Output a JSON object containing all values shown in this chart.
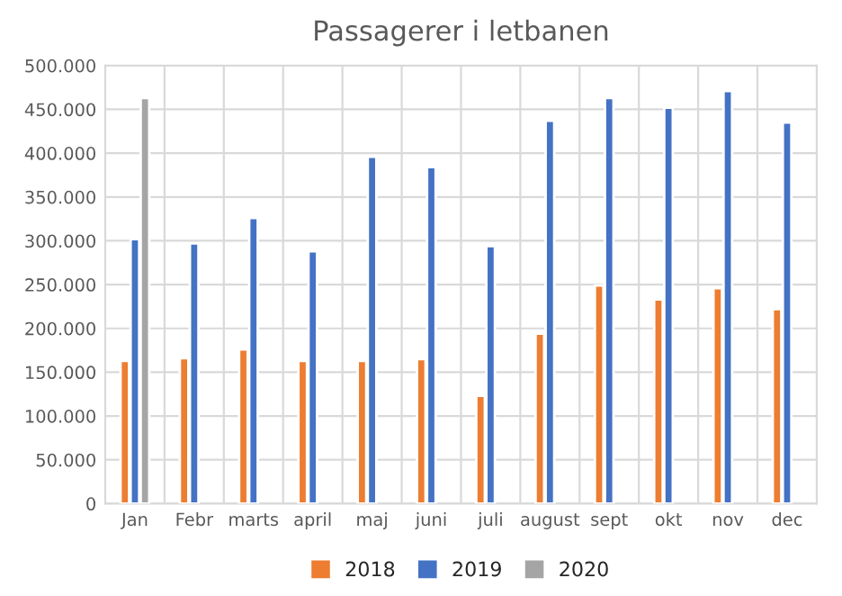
{
  "chart_data": {
    "type": "bar",
    "title": "Passagerer i letbanen",
    "categories": [
      "Jan",
      "Febr",
      "marts",
      "april",
      "maj",
      "juni",
      "juli",
      "august",
      "sept",
      "okt",
      "nov",
      "dec"
    ],
    "series": [
      {
        "name": "2018",
        "color": "#ed7d31",
        "values": [
          163000,
          166000,
          176000,
          163000,
          163000,
          165000,
          123000,
          194000,
          249000,
          233000,
          246000,
          222000
        ]
      },
      {
        "name": "2019",
        "color": "#4472c4",
        "values": [
          302000,
          297000,
          326000,
          288000,
          396000,
          384000,
          294000,
          437000,
          463000,
          452000,
          471000,
          435000
        ]
      },
      {
        "name": "2020",
        "color": "#a5a5a5",
        "values": [
          463000,
          null,
          null,
          null,
          null,
          null,
          null,
          null,
          null,
          null,
          null,
          null
        ]
      }
    ],
    "ylim": [
      0,
      500000
    ],
    "yticks": [
      {
        "value": 0,
        "label": "0"
      },
      {
        "value": 50000,
        "label": "50.000"
      },
      {
        "value": 100000,
        "label": "100.000"
      },
      {
        "value": 150000,
        "label": "150.000"
      },
      {
        "value": 200000,
        "label": "200.000"
      },
      {
        "value": 250000,
        "label": "250.000"
      },
      {
        "value": 300000,
        "label": "300.000"
      },
      {
        "value": 350000,
        "label": "350.000"
      },
      {
        "value": 400000,
        "label": "400.000"
      },
      {
        "value": 450000,
        "label": "450.000"
      },
      {
        "value": 500000,
        "label": "500.000"
      }
    ],
    "grid": true,
    "legend": "bottom"
  }
}
